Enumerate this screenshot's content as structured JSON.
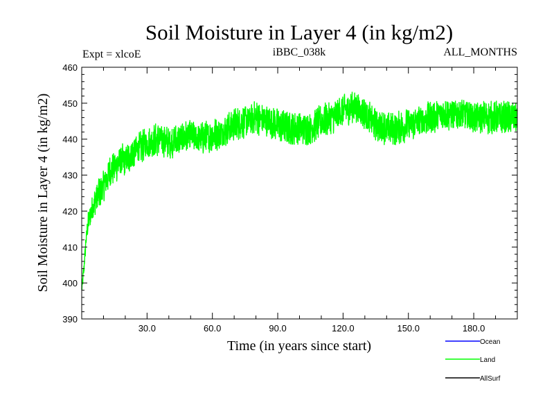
{
  "chart_data": {
    "type": "line",
    "title": "Soil Moisture in Layer 4 (in kg/m2)",
    "subtitle_left": "Expt = xlcoE",
    "subtitle_center": "iBBC_038k",
    "subtitle_right": "ALL_MONTHS",
    "xlabel": "Time (in years since start)",
    "ylabel": "Soil Moisture in Layer 4 (in kg/m2)",
    "xlim": [
      0,
      200
    ],
    "ylim": [
      390,
      460
    ],
    "xticks": [
      30,
      60,
      90,
      120,
      150,
      180
    ],
    "xtick_labels": [
      "30.0",
      "60.0",
      "90.0",
      "120.0",
      "150.0",
      "180.0"
    ],
    "yticks": [
      390,
      400,
      410,
      420,
      430,
      440,
      450,
      460
    ],
    "ytick_labels": [
      "390",
      "400",
      "410",
      "420",
      "430",
      "440",
      "450",
      "460"
    ],
    "grid": false,
    "legend_position": "bottom-right",
    "series": [
      {
        "name": "Ocean",
        "color": "#0000ff",
        "values": []
      },
      {
        "name": "Land",
        "color": "#00ff00",
        "noise_amplitude": 4,
        "x": [
          0,
          1,
          2,
          3,
          5,
          7,
          10,
          13,
          15,
          18,
          20,
          25,
          30,
          35,
          40,
          45,
          50,
          55,
          60,
          65,
          70,
          75,
          80,
          85,
          90,
          95,
          100,
          105,
          110,
          115,
          120,
          125,
          130,
          135,
          140,
          145,
          150,
          155,
          160,
          165,
          170,
          175,
          180,
          185,
          190,
          195,
          200
        ],
        "values": [
          398,
          404,
          412,
          417,
          421,
          424,
          427,
          431,
          432,
          434,
          434,
          437,
          439,
          440,
          439,
          440,
          441,
          440,
          441,
          442,
          444,
          445,
          446,
          445,
          444,
          443,
          443,
          443,
          445,
          446,
          448,
          449,
          447,
          444,
          443,
          443,
          444,
          445,
          446,
          447,
          447,
          447,
          446,
          446,
          446,
          446,
          446
        ]
      },
      {
        "name": "AllSurf",
        "color": "#000000",
        "values": []
      }
    ]
  }
}
